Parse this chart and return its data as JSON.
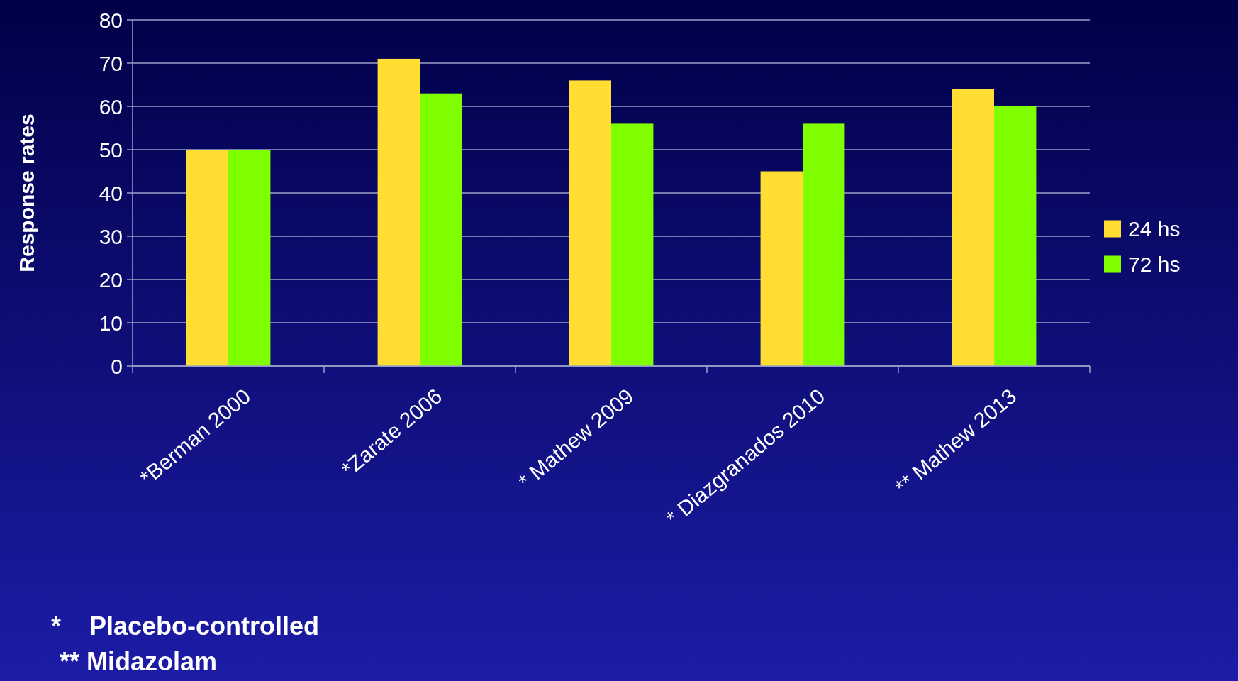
{
  "chart_data": {
    "type": "bar",
    "ylabel": "Response rates",
    "categories": [
      "*Berman 2000",
      "*Zarate 2006",
      "* Mathew 2009",
      "* Diazgranados 2010",
      "** Mathew 2013"
    ],
    "series": [
      {
        "name": "24 hs",
        "color": "#ffdd33",
        "values": [
          50,
          71,
          66,
          45,
          64
        ]
      },
      {
        "name": "72 hs",
        "color": "#80ff00",
        "values": [
          50,
          63,
          56,
          56,
          60
        ]
      }
    ],
    "ylim": [
      0,
      80
    ],
    "yticks": [
      0,
      10,
      20,
      30,
      40,
      50,
      60,
      70,
      80
    ],
    "grid": "y",
    "legend": "right",
    "annotations": [
      "*    Placebo-controlled",
      "** Midazolam"
    ]
  }
}
